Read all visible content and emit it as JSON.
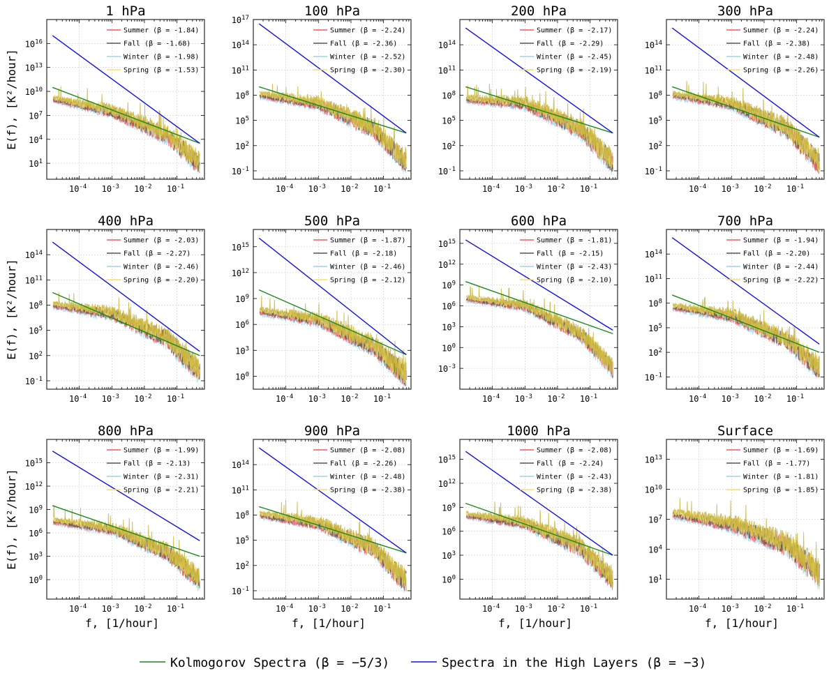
{
  "chart_data": {
    "type": "line",
    "layout": "3x4 grid of log-log spectra",
    "x_axis": {
      "label": "f, [1/hour]",
      "scale": "log",
      "range": [
        1e-05,
        0.7
      ],
      "ticks": [
        "10^-4",
        "10^-3",
        "10^-2",
        "10^-1"
      ]
    },
    "y_axis": {
      "label": "E(f), [K²/hour]",
      "scale": "log"
    },
    "grid": true,
    "series_colors": {
      "Summer": "#f15a5a",
      "Fall": "#555555",
      "Winter": "#9fd4ea",
      "Spring": "#f3df6c",
      "overlap": "#c9b53a",
      "Kolmogorov": "#1a8a1a",
      "High": "#1010e0"
    },
    "reference_lines": [
      {
        "name": "Kolmogorov Spectra ($\\beta = -5/3$)",
        "display": "Kolmogorov Spectra (β = −5/3)",
        "slope": -1.6667
      },
      {
        "name": "Spectra in the High Layers ($\\beta = -3$)",
        "display": "Spectra in the High Layers (β = −3)",
        "slope": -3
      }
    ],
    "panels": [
      {
        "title": "1 hPa",
        "ylim_exp": [
          -1,
          19
        ],
        "yticks": [
          1,
          4,
          7,
          10,
          13,
          16
        ],
        "kol_end": [
          10.5,
          3.5
        ],
        "high_end": [
          17,
          3.5
        ],
        "data_level": [
          9,
          7.5,
          4.5,
          1
        ],
        "legend": [
          {
            "season": "Summer",
            "label": "Summer (β = -1.84)"
          },
          {
            "season": "Fall",
            "label": "Fall (β = -1.68)"
          },
          {
            "season": "Winter",
            "label": "Winter (β = -1.98)"
          },
          {
            "season": "Spring",
            "label": "Spring (β = -1.53)"
          }
        ]
      },
      {
        "title": "100 hPa",
        "ylim_exp": [
          -2,
          17
        ],
        "yticks": [
          -1,
          2,
          5,
          8,
          11,
          14,
          17
        ],
        "kol_end": [
          9,
          3.5
        ],
        "high_end": [
          16.5,
          3.5
        ],
        "data_level": [
          8,
          7,
          4,
          0
        ]
      },
      {
        "title": "200 hPa",
        "ylim_exp": [
          -2,
          17
        ],
        "yticks": [
          -1,
          2,
          5,
          8,
          11,
          14
        ],
        "kol_end": [
          9,
          3.5
        ],
        "high_end": [
          16,
          3.5
        ],
        "data_level": [
          7.5,
          7,
          4,
          0
        ]
      },
      {
        "title": "300 hPa",
        "ylim_exp": [
          -2,
          17
        ],
        "yticks": [
          -1,
          2,
          5,
          8,
          11,
          14
        ],
        "kol_end": [
          9,
          3
        ],
        "high_end": [
          16,
          3
        ],
        "data_level": [
          8,
          7,
          4,
          0
        ]
      },
      {
        "title": "400 hPa",
        "ylim_exp": [
          -2,
          17
        ],
        "yticks": [
          -1,
          2,
          5,
          8,
          11,
          14
        ],
        "kol_end": [
          9.5,
          2
        ],
        "high_end": [
          15.5,
          2.5
        ],
        "data_level": [
          8,
          7,
          4,
          0
        ]
      },
      {
        "title": "500 hPa",
        "ylim_exp": [
          -1.5,
          17
        ],
        "yticks": [
          0,
          3,
          6,
          9,
          12,
          15
        ],
        "kol_end": [
          10,
          2.5
        ],
        "high_end": [
          16,
          2.5
        ],
        "data_level": [
          7.5,
          6.5,
          3.5,
          0
        ]
      },
      {
        "title": "600 hPa",
        "ylim_exp": [
          -6,
          17
        ],
        "yticks": [
          -3,
          0,
          3,
          6,
          9,
          12,
          15
        ],
        "kol_end": [
          9.5,
          2
        ],
        "high_end": [
          15.5,
          2.5
        ],
        "data_level": [
          7,
          6,
          2,
          -3
        ]
      },
      {
        "title": "700 hPa",
        "ylim_exp": [
          -2.5,
          17
        ],
        "yticks": [
          -1,
          2,
          5,
          8,
          11,
          14
        ],
        "kol_end": [
          9,
          2
        ],
        "high_end": [
          16,
          3
        ],
        "data_level": [
          7.5,
          6.5,
          3.5,
          0
        ]
      },
      {
        "title": "800 hPa",
        "ylim_exp": [
          -2.5,
          18
        ],
        "yticks": [
          0,
          3,
          6,
          9,
          12,
          15
        ],
        "kol_end": [
          9.5,
          3
        ],
        "high_end": [
          16.5,
          5
        ],
        "data_level": [
          7.5,
          6.5,
          3.5,
          0
        ]
      },
      {
        "title": "900 hPa",
        "ylim_exp": [
          -2,
          17
        ],
        "yticks": [
          -1,
          2,
          5,
          8,
          11,
          14
        ],
        "kol_end": [
          9,
          3.5
        ],
        "high_end": [
          16,
          3.5
        ],
        "data_level": [
          8,
          7,
          4,
          0
        ]
      },
      {
        "title": "1000 hPa",
        "ylim_exp": [
          -2.5,
          17.5
        ],
        "yticks": [
          0,
          3,
          6,
          9,
          12,
          15
        ],
        "kol_end": [
          9.5,
          3
        ],
        "high_end": [
          16,
          3
        ],
        "data_level": [
          8,
          7,
          4,
          0
        ]
      },
      {
        "title": "Surface",
        "ylim_exp": [
          -1,
          15
        ],
        "yticks": [
          1,
          4,
          7,
          10,
          13
        ],
        "kol_end": null,
        "high_end": null,
        "data_level": [
          7.5,
          6.5,
          4.5,
          1.5
        ]
      }
    ],
    "legends_text": [
      [
        "Summer (β = -1.84)",
        "Fall (β = -1.68)",
        "Winter (β = -1.98)",
        "Spring (β = -1.53)"
      ],
      [
        "Summer (β = -2.24)",
        "Fall (β = -2.36)",
        "Winter (β = -2.52)",
        "Spring (β = -2.30)"
      ],
      [
        "Summer (β = -2.17)",
        "Fall (β = -2.29)",
        "Winter (β = -2.45)",
        "Spring (β = -2.19)"
      ],
      [
        "Summer (β = -2.24)",
        "Fall (β = -2.38)",
        "Winter (β = -2.48)",
        "Spring (β = -2.26)"
      ],
      [
        "Summer (β = -2.03)",
        "Fall (β = -2.27)",
        "Winter (β = -2.46)",
        "Spring (β = -2.20)"
      ],
      [
        "Summer (β = -1.87)",
        "Fall (β = -2.18)",
        "Winter (β = -2.46)",
        "Spring (β = -2.12)"
      ],
      [
        "Summer (β = -1.81)",
        "Fall (β = -2.15)",
        "Winter (β = -2.43)",
        "Spring (β = -2.10)"
      ],
      [
        "Summer (β = -1.94)",
        "Fall (β = -2.20)",
        "Winter (β = -2.44)",
        "Spring (β = -2.22)"
      ],
      [
        "Summer (β = -1.99)",
        "Fall (β = -2.13)",
        "Winter (β = -2.31)",
        "Spring (β = -2.21)"
      ],
      [
        "Summer (β = -2.08)",
        "Fall (β = -2.26)",
        "Winter (β = -2.48)",
        "Spring (β = -2.38)"
      ],
      [
        "Summer (β = -2.08)",
        "Fall (β = -2.24)",
        "Winter (β = -2.43)",
        "Spring (β = -2.38)"
      ],
      [
        "Summer (β = -1.69)",
        "Fall (β = -1.77)",
        "Winter (β = -1.81)",
        "Spring (β = -1.85)"
      ]
    ]
  }
}
